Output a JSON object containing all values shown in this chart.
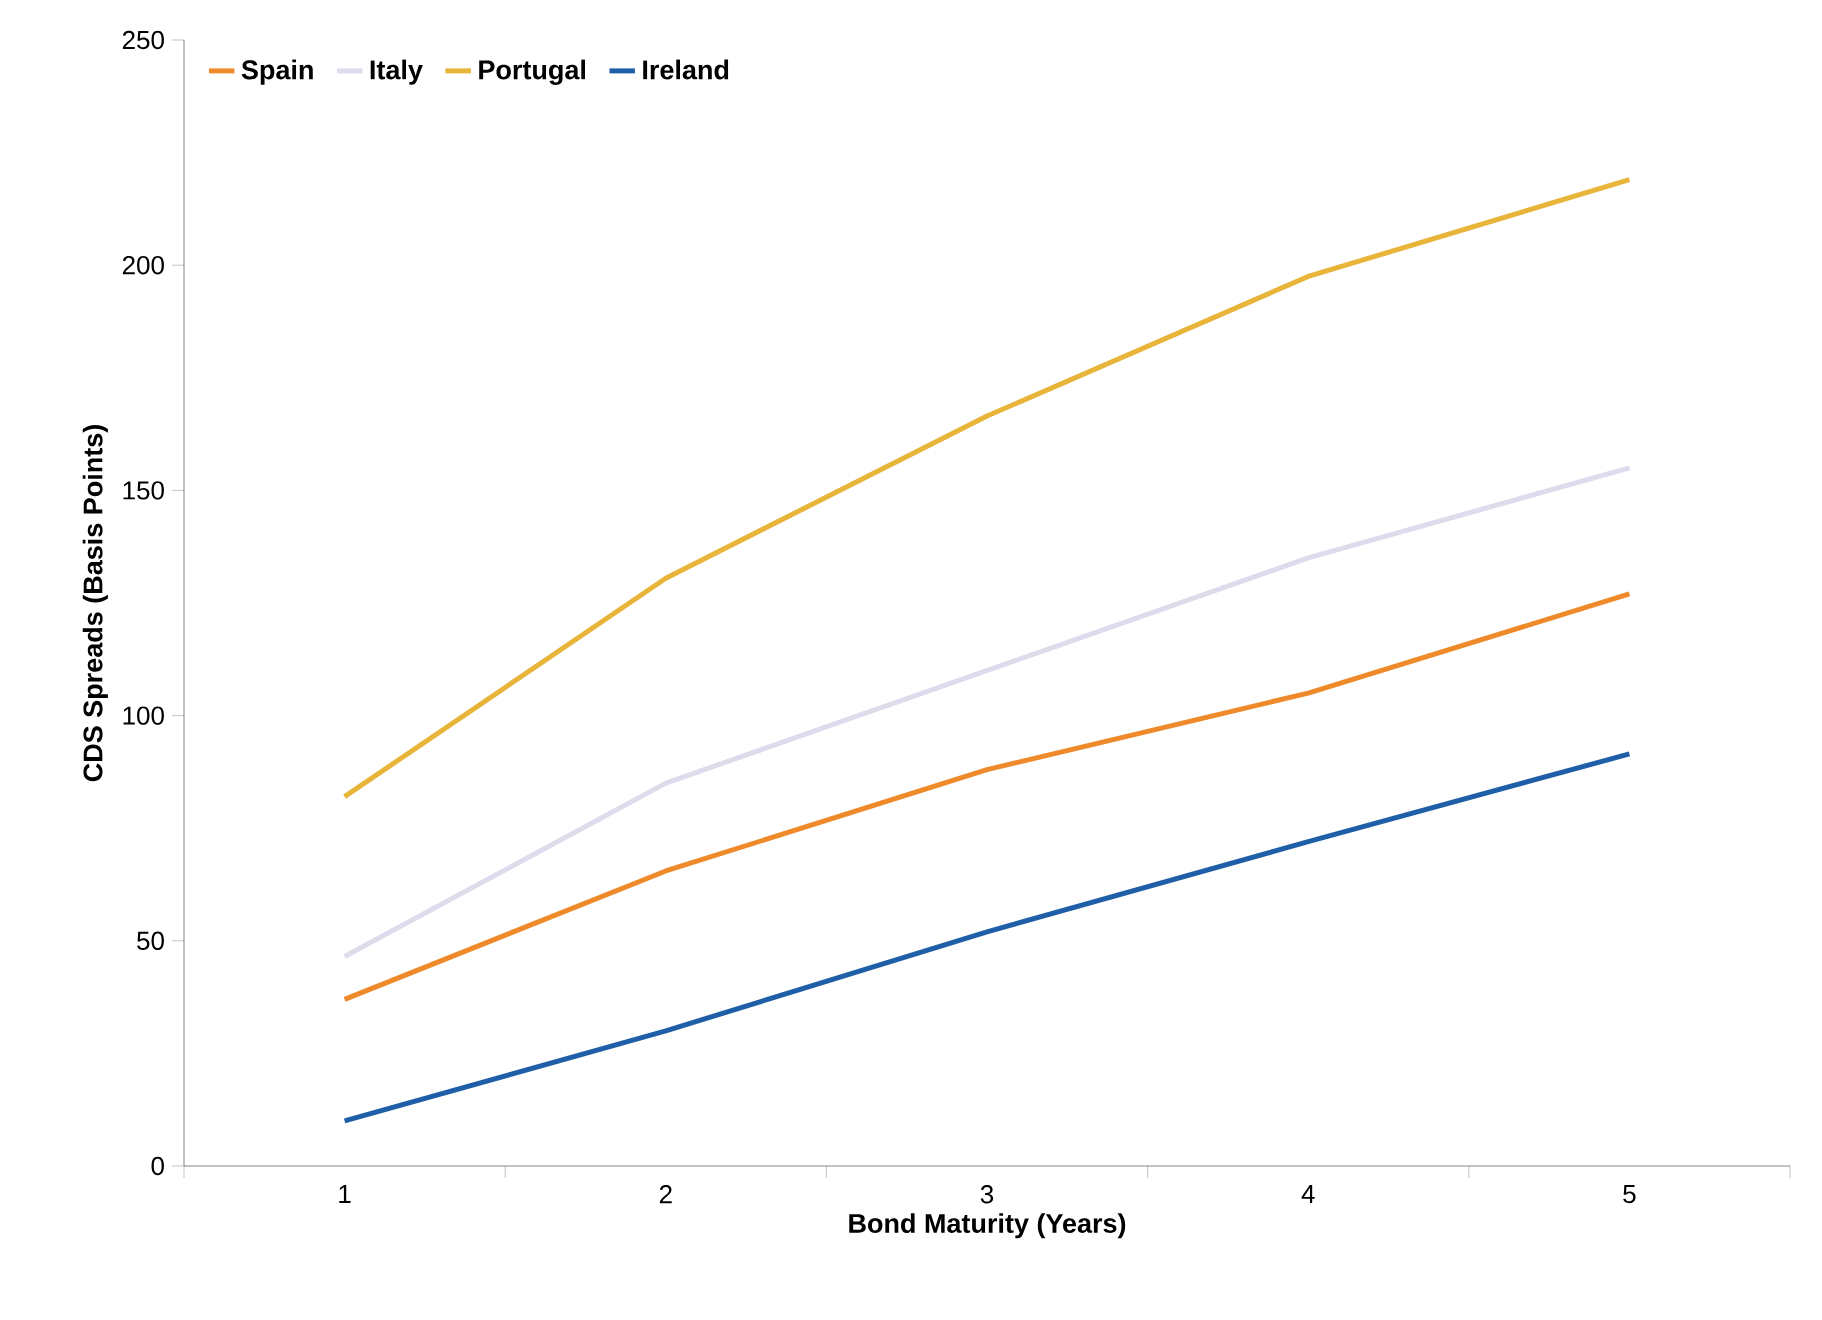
{
  "chart_data": {
    "type": "line",
    "xlabel": "Bond Maturity (Years)",
    "ylabel": "CDS Spreads (Basis Points)",
    "categories": [
      "1",
      "2",
      "3",
      "4",
      "5"
    ],
    "series": [
      {
        "name": "Spain",
        "color": "#ef8a2a",
        "values": [
          37,
          65.5,
          88,
          105,
          127
        ]
      },
      {
        "name": "Italy",
        "color": "#dcdcec",
        "values": [
          46.5,
          85,
          110,
          135,
          155
        ]
      },
      {
        "name": "Portugal",
        "color": "#e8b43a",
        "values": [
          82,
          130.5,
          166.5,
          197.5,
          219
        ]
      },
      {
        "name": "Ireland",
        "color": "#1f5fa8",
        "values": [
          10,
          30,
          52,
          72,
          91.5
        ]
      }
    ],
    "ylim": [
      0,
      250
    ],
    "yticks": [
      0,
      50,
      100,
      150,
      200,
      250
    ],
    "grid": false,
    "legend": "top left",
    "marker": "none",
    "line_style": "solid"
  }
}
